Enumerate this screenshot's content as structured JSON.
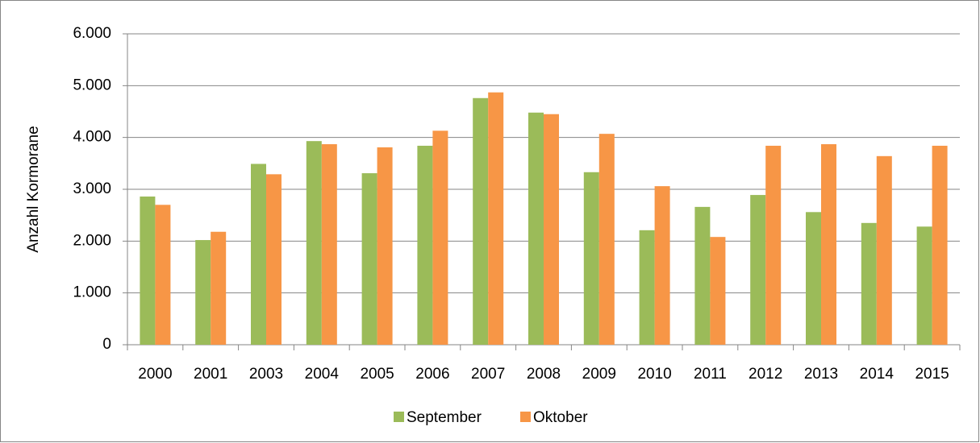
{
  "chart_data": {
    "type": "bar",
    "y_label": "Anzahl Kormorane",
    "categories": [
      "2000",
      "2001",
      "2003",
      "2004",
      "2005",
      "2006",
      "2007",
      "2008",
      "2009",
      "2010",
      "2011",
      "2012",
      "2013",
      "2014",
      "2015"
    ],
    "series": [
      {
        "name": "September",
        "color": "#9bbb59",
        "values": [
          2860,
          2020,
          3490,
          3930,
          3310,
          3840,
          4760,
          4480,
          3330,
          2210,
          2660,
          2890,
          2560,
          2350,
          2280
        ]
      },
      {
        "name": "Oktober",
        "color": "#f79646",
        "values": [
          2700,
          2180,
          3290,
          3870,
          3810,
          4130,
          4870,
          4450,
          4070,
          3060,
          2080,
          3840,
          3870,
          3640,
          3840
        ]
      }
    ],
    "ylim": [
      0,
      6000
    ],
    "yticks": [
      0,
      {
        "value": 1000,
        "label": "1.000"
      },
      {
        "value": 2000,
        "label": "2.000"
      },
      {
        "value": 3000,
        "label": "3.000"
      },
      {
        "value": 4000,
        "label": "4.000"
      },
      {
        "value": 5000,
        "label": "5.000"
      },
      {
        "value": 6000,
        "label": "6.000"
      }
    ],
    "grid": true,
    "legend": "bottom"
  }
}
